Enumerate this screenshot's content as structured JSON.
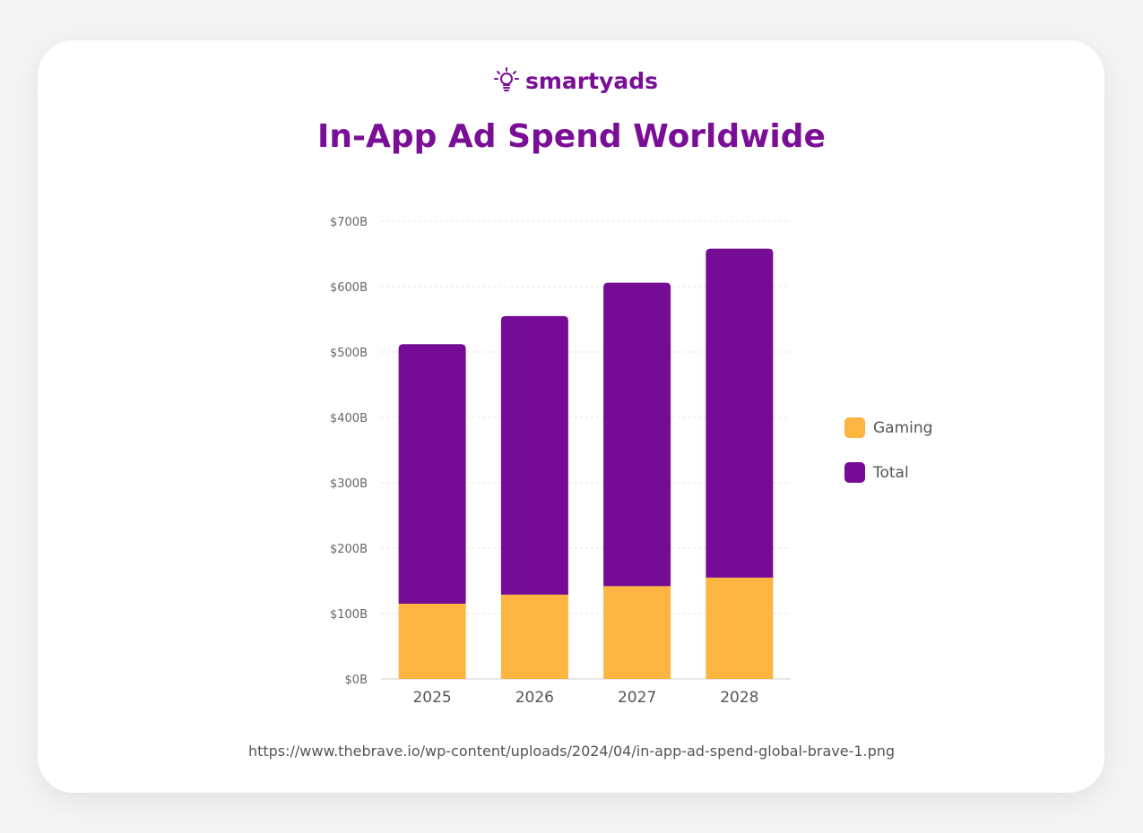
{
  "logo": {
    "text": "smartyads",
    "icon": "lightbulb-icon"
  },
  "title": "In-App Ad Spend Worldwide",
  "source": "https://www.thebrave.io/wp-content/uploads/2024/04/in-app-ad-spend-global-brave-1.png",
  "colors": {
    "accent": "#7a0e96",
    "gaming": "#fbb540",
    "total": "#760c96"
  },
  "chart_data": {
    "type": "bar",
    "stacked": true,
    "title": "In-App Ad Spend Worldwide",
    "categories": [
      "2025",
      "2026",
      "2027",
      "2028"
    ],
    "series": [
      {
        "name": "Gaming",
        "values": [
          115,
          129,
          142,
          155
        ]
      },
      {
        "name": "Total",
        "values": [
          397,
          426,
          464,
          503
        ]
      }
    ],
    "ylim": [
      0,
      700
    ],
    "yticks": [
      "$0B",
      "$100B",
      "$200B",
      "$300B",
      "$400B",
      "$500B",
      "$600B",
      "$700B"
    ],
    "grid": true,
    "legend": "right"
  }
}
